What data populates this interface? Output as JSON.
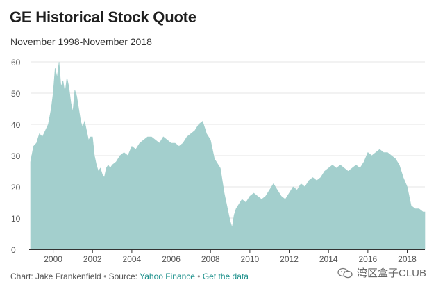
{
  "title": "GE Historical Stock Quote",
  "subtitle": "November 1998-November 2018",
  "footer": {
    "credit": "Chart: Jake Frankenfield",
    "source_prefix": "Source:",
    "source_link": "Yahoo Finance",
    "data_link": "Get the data"
  },
  "watermark": {
    "text": "湾区盒子CLUB",
    "icon": "wechat-icon"
  },
  "colors": {
    "area_fill": "#a3cfcd",
    "grid": "#e6e6e6",
    "axis": "#333333",
    "link": "#1a8f8a"
  },
  "chart_data": {
    "type": "area",
    "title": "GE Historical Stock Quote",
    "subtitle": "November 1998-November 2018",
    "xlabel": "",
    "ylabel": "",
    "xlim": [
      1998.85,
      2018.9
    ],
    "ylim": [
      0,
      60
    ],
    "yticks": [
      0,
      10,
      20,
      30,
      40,
      50,
      60
    ],
    "xticks": [
      2000,
      2002,
      2004,
      2006,
      2008,
      2010,
      2012,
      2014,
      2016,
      2018
    ],
    "grid": true,
    "legend": "none",
    "series": [
      {
        "x": [
          1998.85,
          1999.0,
          1999.15,
          1999.3,
          1999.45,
          1999.6,
          1999.75,
          1999.9,
          2000.0,
          2000.1,
          2000.2,
          2000.3,
          2000.4,
          2000.5,
          2000.6,
          2000.7,
          2000.8,
          2000.9,
          2001.0,
          2001.1,
          2001.2,
          2001.3,
          2001.4,
          2001.5,
          2001.6,
          2001.7,
          2001.8,
          2001.9,
          2002.0,
          2002.1,
          2002.2,
          2002.3,
          2002.4,
          2002.5,
          2002.6,
          2002.7,
          2002.8,
          2002.9,
          2003.0,
          2003.2,
          2003.4,
          2003.6,
          2003.8,
          2004.0,
          2004.2,
          2004.4,
          2004.6,
          2004.8,
          2005.0,
          2005.2,
          2005.4,
          2005.6,
          2005.8,
          2006.0,
          2006.2,
          2006.4,
          2006.6,
          2006.8,
          2007.0,
          2007.2,
          2007.4,
          2007.6,
          2007.8,
          2008.0,
          2008.2,
          2008.4,
          2008.5,
          2008.6,
          2008.7,
          2008.8,
          2008.9,
          2009.0,
          2009.1,
          2009.2,
          2009.3,
          2009.4,
          2009.6,
          2009.8,
          2010.0,
          2010.2,
          2010.4,
          2010.6,
          2010.8,
          2011.0,
          2011.2,
          2011.4,
          2011.6,
          2011.8,
          2012.0,
          2012.2,
          2012.4,
          2012.6,
          2012.8,
          2013.0,
          2013.2,
          2013.4,
          2013.6,
          2013.8,
          2014.0,
          2014.2,
          2014.4,
          2014.6,
          2014.8,
          2015.0,
          2015.2,
          2015.4,
          2015.6,
          2015.8,
          2016.0,
          2016.2,
          2016.4,
          2016.6,
          2016.8,
          2017.0,
          2017.2,
          2017.4,
          2017.6,
          2017.8,
          2018.0,
          2018.2,
          2018.4,
          2018.6,
          2018.8,
          2018.9
        ],
        "values": [
          28,
          33,
          34,
          37,
          36,
          38,
          40,
          45,
          50,
          58,
          55,
          60,
          52,
          54,
          50,
          55,
          52,
          47,
          44,
          51,
          49,
          45,
          41,
          39,
          41,
          38,
          35,
          36,
          36,
          30,
          27,
          25,
          26,
          24,
          23,
          26,
          27,
          26,
          27,
          28,
          30,
          31,
          30,
          33,
          32,
          34,
          35,
          36,
          36,
          35,
          34,
          36,
          35,
          34,
          34,
          33,
          34,
          36,
          37,
          38,
          40,
          41,
          37,
          35,
          29,
          27,
          26,
          22,
          18,
          15,
          12,
          9,
          7,
          11,
          13,
          14,
          16,
          15,
          17,
          18,
          17,
          16,
          17,
          19,
          21,
          19,
          17,
          16,
          18,
          20,
          19,
          21,
          20,
          22,
          23,
          22,
          23,
          25,
          26,
          27,
          26,
          27,
          26,
          25,
          26,
          27,
          26,
          28,
          31,
          30,
          31,
          32,
          31,
          31,
          30,
          29,
          27,
          23,
          20,
          14,
          13,
          13,
          12,
          12
        ]
      }
    ]
  }
}
